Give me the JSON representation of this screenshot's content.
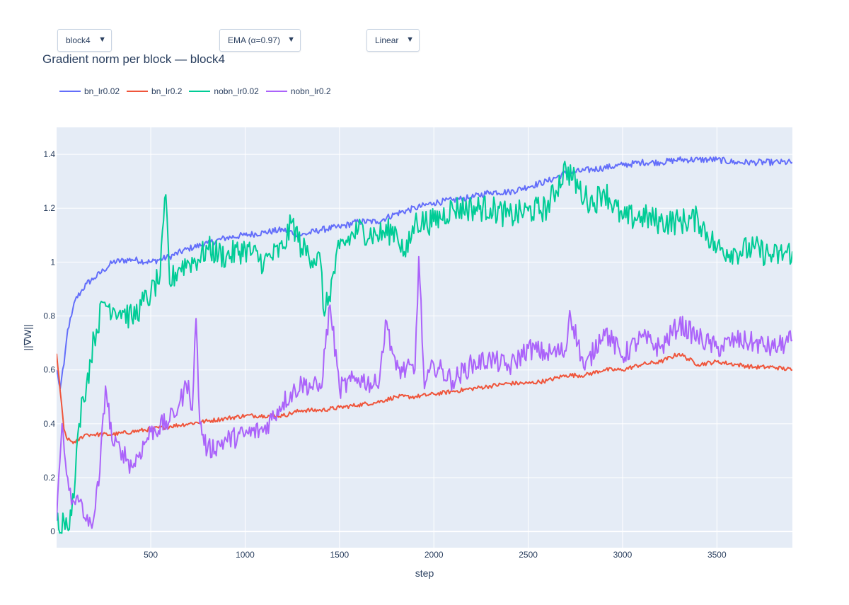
{
  "controls": {
    "block_select": {
      "value": "block4",
      "arrow": "▼"
    },
    "smoothing_select": {
      "value": "EMA (α=0.97)",
      "arrow": "▼"
    },
    "scale_select": {
      "value": "Linear",
      "arrow": "▼"
    }
  },
  "chart_data": {
    "type": "line",
    "title": "Gradient norm per block — block4",
    "xlabel": "step",
    "ylabel": "||∇W||",
    "xlim": [
      1,
      3900
    ],
    "ylim": [
      -0.06,
      1.5
    ],
    "xticks": [
      500,
      1000,
      1500,
      2000,
      2500,
      3000,
      3500
    ],
    "yticks": [
      0,
      0.2,
      0.4,
      0.6,
      0.8,
      1,
      1.2,
      1.4
    ],
    "ytick_labels": [
      "0",
      "0.2",
      "0.4",
      "0.6",
      "0.8",
      "1",
      "1.2",
      "1.4"
    ],
    "grid": true,
    "legend_position": "top-left, horizontal",
    "plot_bgcolor": "#e5ecf6",
    "series": [
      {
        "name": "bn_lr0.02",
        "color": "#636efa",
        "x": [
          1,
          20,
          40,
          60,
          80,
          100,
          130,
          160,
          200,
          250,
          300,
          400,
          500,
          600,
          700,
          800,
          900,
          1000,
          1100,
          1200,
          1300,
          1400,
          1500,
          1600,
          1700,
          1800,
          1900,
          2000,
          2100,
          2200,
          2300,
          2400,
          2500,
          2600,
          2700,
          2800,
          2900,
          3000,
          3100,
          3200,
          3300,
          3400,
          3500,
          3600,
          3700,
          3800,
          3900
        ],
        "y": [
          0.6,
          0.53,
          0.62,
          0.75,
          0.8,
          0.86,
          0.89,
          0.92,
          0.94,
          0.97,
          1.0,
          1.01,
          1.0,
          1.02,
          1.05,
          1.07,
          1.09,
          1.1,
          1.11,
          1.12,
          1.1,
          1.12,
          1.13,
          1.15,
          1.15,
          1.18,
          1.2,
          1.22,
          1.23,
          1.24,
          1.26,
          1.26,
          1.28,
          1.3,
          1.33,
          1.34,
          1.35,
          1.36,
          1.37,
          1.37,
          1.38,
          1.38,
          1.38,
          1.37,
          1.37,
          1.37,
          1.37
        ]
      },
      {
        "name": "bn_lr0.2",
        "color": "#ef553b",
        "x": [
          1,
          20,
          40,
          60,
          100,
          150,
          200,
          300,
          400,
          500,
          600,
          700,
          800,
          900,
          1000,
          1100,
          1200,
          1300,
          1400,
          1500,
          1600,
          1700,
          1800,
          1900,
          2000,
          2100,
          2200,
          2300,
          2400,
          2500,
          2600,
          2700,
          2800,
          2900,
          3000,
          3100,
          3200,
          3300,
          3400,
          3500,
          3600,
          3700,
          3800,
          3900
        ],
        "y": [
          0.66,
          0.52,
          0.38,
          0.34,
          0.33,
          0.36,
          0.36,
          0.36,
          0.37,
          0.38,
          0.39,
          0.4,
          0.41,
          0.42,
          0.43,
          0.43,
          0.43,
          0.45,
          0.45,
          0.46,
          0.47,
          0.48,
          0.5,
          0.5,
          0.51,
          0.52,
          0.53,
          0.54,
          0.55,
          0.55,
          0.56,
          0.58,
          0.58,
          0.6,
          0.6,
          0.62,
          0.63,
          0.66,
          0.62,
          0.63,
          0.62,
          0.61,
          0.61,
          0.6
        ]
      },
      {
        "name": "nobn_lr0.02",
        "color": "#00cc96",
        "x": [
          1,
          40,
          80,
          100,
          120,
          140,
          160,
          200,
          250,
          300,
          350,
          400,
          450,
          500,
          550,
          580,
          600,
          650,
          700,
          750,
          800,
          900,
          1000,
          1100,
          1200,
          1250,
          1300,
          1400,
          1420,
          1500,
          1600,
          1700,
          1800,
          1850,
          1900,
          2000,
          2100,
          2200,
          2300,
          2400,
          2500,
          2600,
          2700,
          2800,
          2850,
          2900,
          3000,
          3100,
          3200,
          3300,
          3400,
          3500,
          3600,
          3700,
          3800,
          3900
        ],
        "y": [
          0.04,
          0.04,
          0.06,
          0.2,
          0.4,
          0.5,
          0.55,
          0.72,
          0.85,
          0.83,
          0.82,
          0.79,
          0.84,
          0.88,
          0.95,
          1.25,
          0.92,
          0.98,
          1.0,
          1.01,
          1.05,
          1.02,
          1.05,
          1.0,
          1.05,
          1.15,
          1.05,
          1.0,
          0.8,
          1.05,
          1.12,
          1.1,
          1.12,
          1.02,
          1.15,
          1.15,
          1.2,
          1.2,
          1.2,
          1.17,
          1.19,
          1.2,
          1.35,
          1.24,
          1.22,
          1.27,
          1.16,
          1.17,
          1.15,
          1.15,
          1.16,
          1.05,
          1.04,
          1.05,
          1.02,
          1.04
        ]
      },
      {
        "name": "nobn_lr0.2",
        "color": "#ab63fa",
        "x": [
          1,
          30,
          60,
          80,
          100,
          130,
          150,
          170,
          200,
          230,
          260,
          300,
          350,
          400,
          500,
          600,
          650,
          700,
          720,
          740,
          760,
          800,
          900,
          1000,
          1100,
          1200,
          1300,
          1400,
          1450,
          1500,
          1600,
          1700,
          1750,
          1800,
          1900,
          1920,
          1950,
          2000,
          2100,
          2200,
          2300,
          2400,
          2500,
          2600,
          2700,
          2720,
          2800,
          2900,
          3000,
          3100,
          3200,
          3300,
          3400,
          3500,
          3600,
          3700,
          3800,
          3900
        ],
        "y": [
          0.04,
          0.4,
          0.2,
          0.1,
          0.1,
          0.12,
          0.05,
          0.02,
          0.06,
          0.22,
          0.54,
          0.32,
          0.3,
          0.24,
          0.37,
          0.41,
          0.47,
          0.56,
          0.45,
          0.79,
          0.4,
          0.3,
          0.34,
          0.36,
          0.38,
          0.48,
          0.55,
          0.53,
          0.84,
          0.53,
          0.57,
          0.54,
          0.78,
          0.6,
          0.6,
          1.02,
          0.53,
          0.62,
          0.56,
          0.62,
          0.64,
          0.61,
          0.68,
          0.66,
          0.67,
          0.82,
          0.6,
          0.75,
          0.65,
          0.72,
          0.68,
          0.77,
          0.72,
          0.68,
          0.71,
          0.7,
          0.68,
          0.71
        ]
      }
    ]
  }
}
